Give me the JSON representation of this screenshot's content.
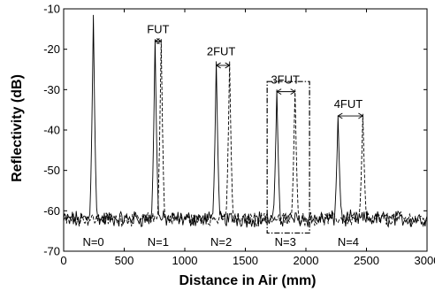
{
  "chart_data": {
    "type": "line",
    "xlabel": "Distance in Air (mm)",
    "ylabel": "Reflectivity (dB)",
    "xlim": [
      0,
      3000
    ],
    "ylim": [
      -70,
      -10
    ],
    "xticks": [
      0,
      500,
      1000,
      1500,
      2000,
      2500,
      3000
    ],
    "yticks": [
      -70,
      -60,
      -50,
      -40,
      -30,
      -20,
      -10
    ],
    "grid": false,
    "noise_floor_db": -62,
    "series": [
      {
        "line_style": "solid",
        "color": "#000000",
        "peaks": [
          {
            "x": 245,
            "y": -11.5
          },
          {
            "x": 755,
            "y": -17.5
          },
          {
            "x": 1260,
            "y": -23
          },
          {
            "x": 1760,
            "y": -30
          },
          {
            "x": 2265,
            "y": -36.5
          }
        ]
      },
      {
        "line_style": "dashed",
        "color": "#000000",
        "peaks": [
          {
            "x": 805,
            "y": -17.5
          },
          {
            "x": 1370,
            "y": -23
          },
          {
            "x": 1910,
            "y": -30
          },
          {
            "x": 2470,
            "y": -36
          }
        ]
      }
    ],
    "annotations": [
      {
        "text": "FUT",
        "x": 780,
        "y": -16
      },
      {
        "text": "2FUT",
        "x": 1300,
        "y": -21.5
      },
      {
        "text": "3FUT",
        "x": 1830,
        "y": -28.5
      },
      {
        "text": "4FUT",
        "x": 2350,
        "y": -34.5
      }
    ],
    "arrows": [
      {
        "x1": 755,
        "x2": 805,
        "y": -18
      },
      {
        "x1": 1260,
        "x2": 1370,
        "y": -24
      },
      {
        "x1": 1760,
        "x2": 1910,
        "y": -30.5
      },
      {
        "x1": 2265,
        "x2": 2470,
        "y": -36.5
      }
    ],
    "n_labels": [
      {
        "text": "N=0",
        "x": 245
      },
      {
        "text": "N=1",
        "x": 780
      },
      {
        "text": "N=2",
        "x": 1300
      },
      {
        "text": "N=3",
        "x": 1830
      },
      {
        "text": "N=4",
        "x": 2350
      }
    ],
    "highlight_box": {
      "x0": 1680,
      "x1": 2030,
      "y0": -65.5,
      "y1": -28
    }
  }
}
